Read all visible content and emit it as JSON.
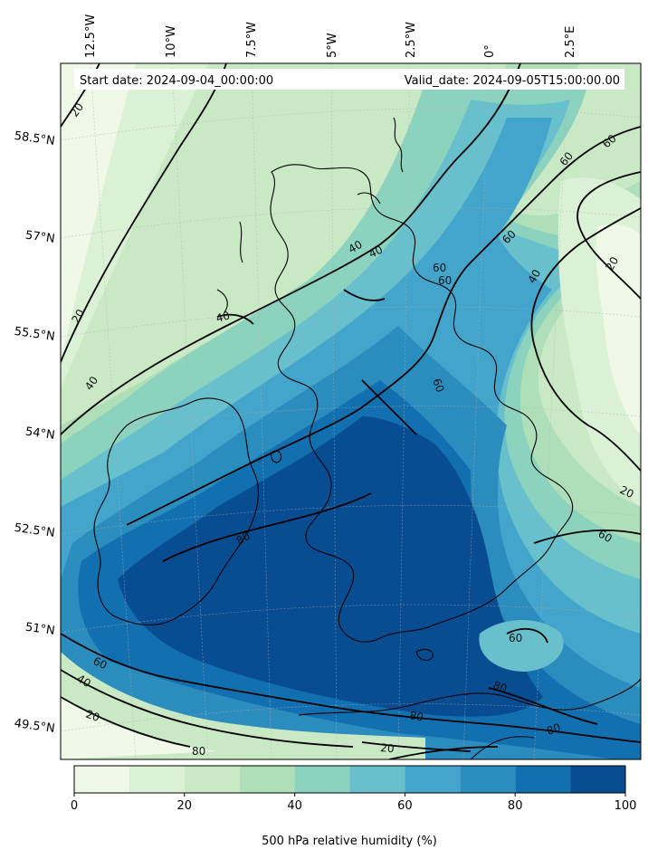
{
  "header": {
    "start_date": "Start date: 2024-09-04_00:00:00",
    "valid_date": "Valid_date: 2024-09-05T15:00:00.00"
  },
  "axes": {
    "top_ticks": [
      "12.5°W",
      "10°W",
      "7.5°W",
      "5°W",
      "2.5°W",
      "0°",
      "2.5°E"
    ],
    "left_ticks": [
      "58.5°N",
      "57°N",
      "55.5°N",
      "54°N",
      "52.5°N",
      "51°N",
      "49.5°N"
    ]
  },
  "contour_labels": [
    "20",
    "40",
    "60",
    "80"
  ],
  "colorbar": {
    "label": "500 hPa relative humidity (%)",
    "ticks": [
      "0",
      "20",
      "40",
      "60",
      "80",
      "100"
    ],
    "range": [
      0,
      100
    ],
    "step": 10,
    "colors": [
      "#f0f9e8",
      "#dbf1d6",
      "#c9e9c4",
      "#aedfb8",
      "#8bd2bf",
      "#67c0cb",
      "#44a5cc",
      "#2b8cbe",
      "#1270b1",
      "#084c92"
    ]
  },
  "chart_data": {
    "type": "heatmap",
    "variable": "500 hPa relative humidity (%)",
    "units": "%",
    "lon_range": [
      -12.5,
      2.5
    ],
    "lat_range": [
      49.5,
      58.5
    ],
    "contour_levels": [
      20,
      40,
      60,
      80
    ],
    "fill_levels": [
      0,
      10,
      20,
      30,
      40,
      50,
      60,
      70,
      80,
      90,
      100
    ],
    "start_date": "2024-09-04_00:00:00",
    "valid_date": "2024-09-05T15:00:00.00"
  }
}
